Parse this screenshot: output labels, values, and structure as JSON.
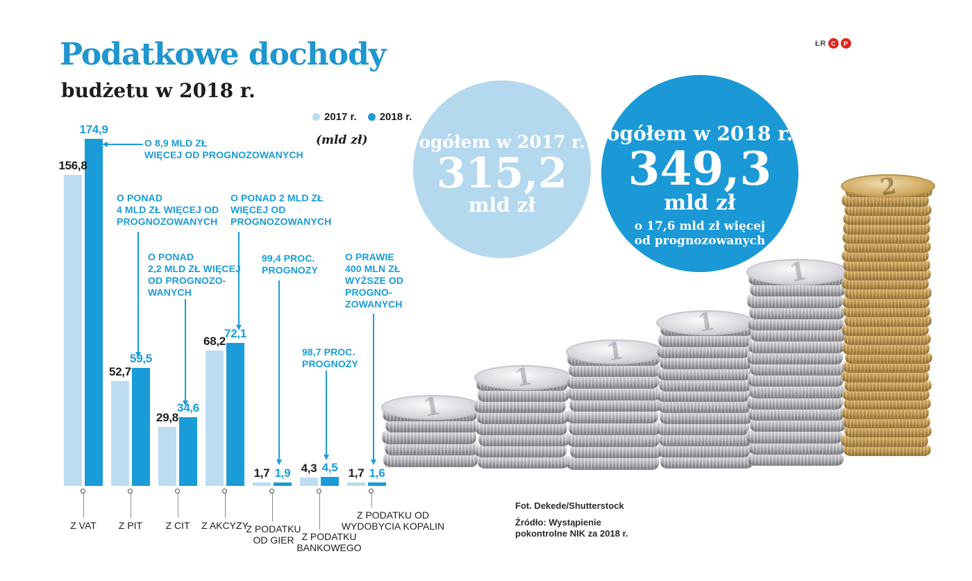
{
  "title": "Podatkowe dochody",
  "subtitle": "budżetu w 2018 r.",
  "brand": {
    "initials": "ŁR",
    "badges": [
      "C",
      "P"
    ]
  },
  "legend": {
    "unit_note": "(mld zł)"
  },
  "totals": [
    {
      "label": "ogółem w 2017 r.",
      "value": "315,2",
      "unit": "mld zł",
      "note": ""
    },
    {
      "label": "ogółem w 2018 r.",
      "value": "349,3",
      "unit": "mld zł",
      "note": "o 17,6 mld zł więcej\nod prognozowanych"
    }
  ],
  "chart_data": {
    "type": "bar",
    "unit": "mld zł",
    "categories": [
      "Z VAT",
      "Z PIT",
      "Z CIT",
      "Z AKCYZY",
      "Z PODATKU OD GIER",
      "Z PODATKU BANKOWEGO",
      "Z PODATKU OD WYDOBYCIA KOPALIN"
    ],
    "series": [
      {
        "name": "2017 r.",
        "color": "#bcdcf1",
        "values": [
          156.8,
          52.7,
          29.8,
          68.2,
          1.7,
          4.3,
          1.7
        ],
        "labels": [
          "156,8",
          "52,7",
          "29,8",
          "68,2",
          "1,7",
          "4,3",
          "1,7"
        ]
      },
      {
        "name": "2018 r.",
        "color": "#1a9cd8",
        "values": [
          174.9,
          59.5,
          34.6,
          72.1,
          1.9,
          4.5,
          1.6
        ],
        "labels": [
          "174,9",
          "59,5",
          "34,6",
          "72,1",
          "1,9",
          "4,5",
          "1,6"
        ]
      }
    ],
    "annotations": [
      {
        "target": "Z VAT",
        "text": "O 8,9 MLD ZŁ\nWIĘCEJ OD PROGNOZOWANYCH"
      },
      {
        "target": "Z PIT",
        "text": "O PONAD\n4 MLD ZŁ WIĘCEJ OD\nPROGNOZOWANYCH"
      },
      {
        "target": "Z CIT",
        "text": "O PONAD\n2,2 MLD ZŁ WIĘCEJ\nOD PROGNOZO-\nWANYCH"
      },
      {
        "target": "Z AKCYZY",
        "text": "O PONAD 2 MLD ZŁ\nWIĘCEJ OD\nPROGNOZOWANYCH"
      },
      {
        "target": "Z PODATKU OD GIER",
        "text": "99,4 PROC.\nPROGNOZY"
      },
      {
        "target": "Z PODATKU BANKOWEGO",
        "text": "98,7 PROC.\nPROGNOZY"
      },
      {
        "target": "Z PODATKU OD WYDOBYCIA KOPALIN",
        "text": "O PRAWIE\n400 MLN ZŁ\nWYŻSZE OD\nPROGNO-\nZOWANYCH"
      }
    ],
    "ylim": [
      0,
      180
    ],
    "grid": false,
    "legend_position": "top-center"
  },
  "photo": {
    "silver_coin_face": "1",
    "gold_coin_face": "2"
  },
  "credits": {
    "photo": "Fot. Dekede/Shutterstock",
    "source": "Źródło: Wystąpienie\npokontrolne NIK za 2018 r."
  },
  "colors": {
    "accent_2018": "#1a9cd8",
    "light_2017": "#bcdcf1",
    "circle_2017": "#b4d8ee",
    "circle_2018": "#1a99d6",
    "title_blue": "#1f96d0",
    "badge_red": "#e2231f",
    "text_black": "#1d1d1b"
  }
}
